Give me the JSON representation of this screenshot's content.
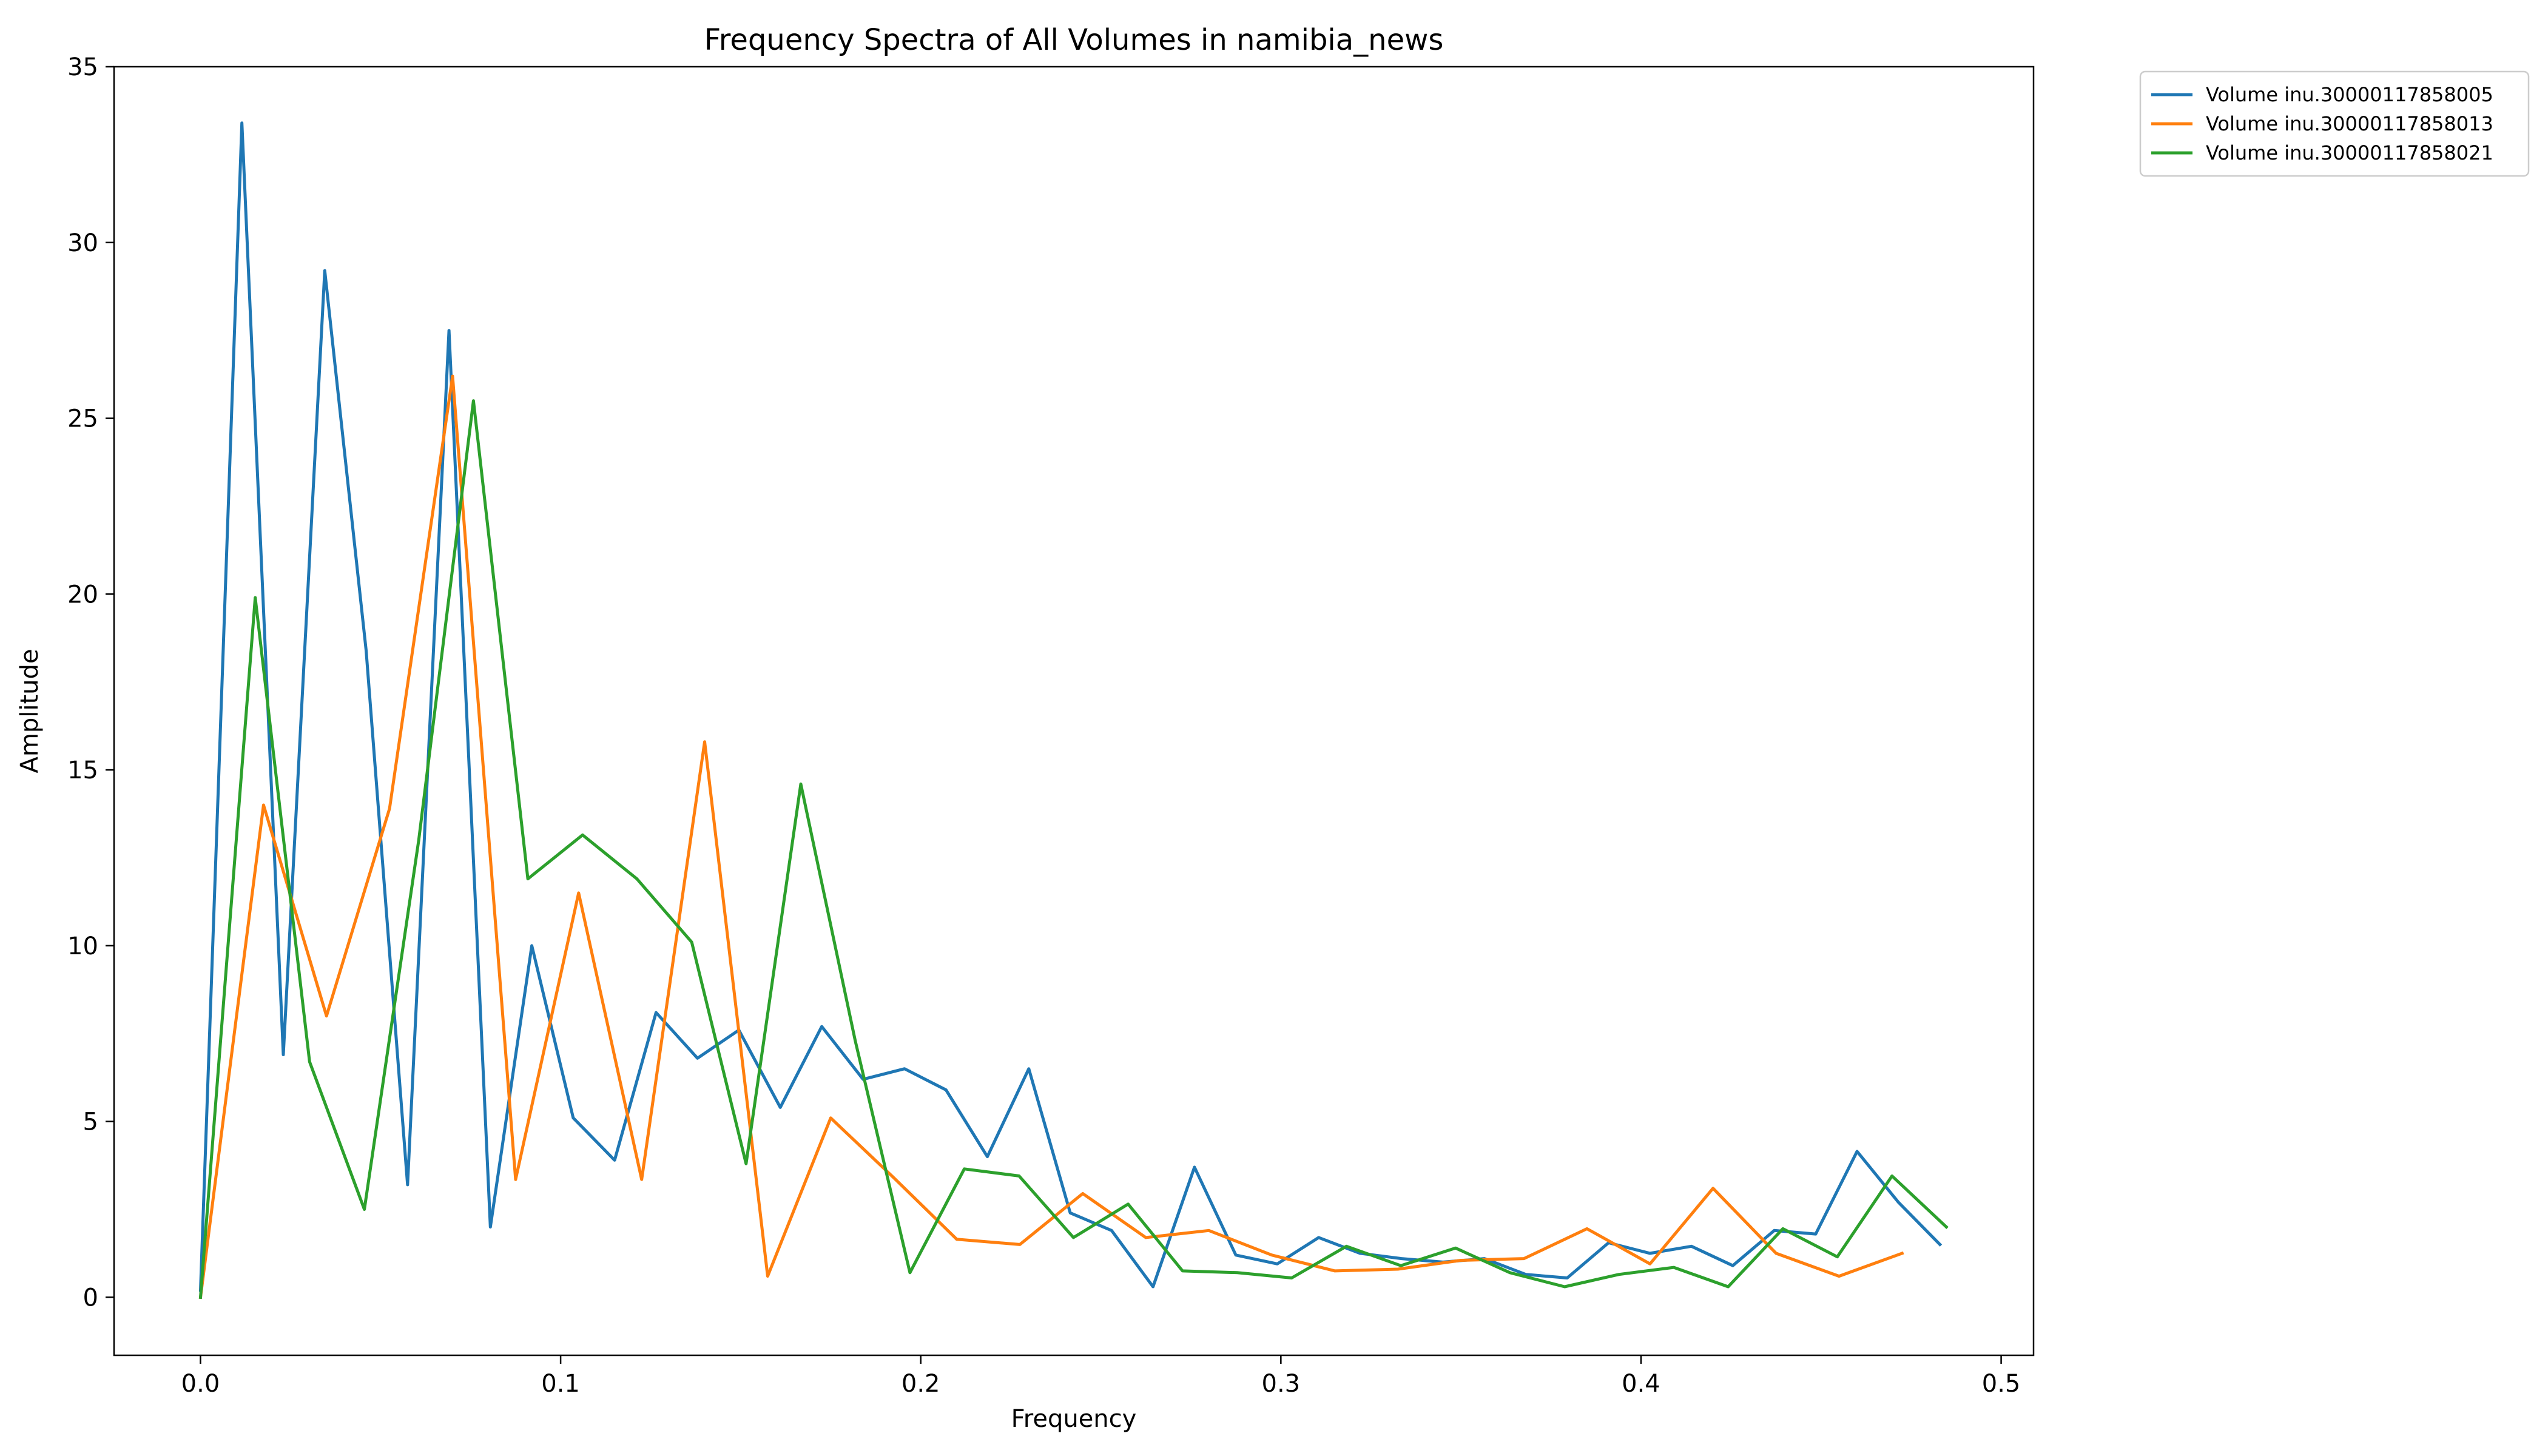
{
  "chart_data": {
    "type": "line",
    "title": "Frequency Spectra of All Volumes in namibia_news",
    "xlabel": "Frequency",
    "ylabel": "Amplitude",
    "xlim": [
      -0.024,
      0.509
    ],
    "ylim": [
      -1.65,
      35.0
    ],
    "xticks": [
      0.0,
      0.1,
      0.2,
      0.3,
      0.4,
      0.5
    ],
    "xtick_labels": [
      "0.0",
      "0.1",
      "0.2",
      "0.3",
      "0.4",
      "0.5"
    ],
    "yticks": [
      0,
      5,
      10,
      15,
      20,
      25,
      30,
      35
    ],
    "ytick_labels": [
      "0",
      "5",
      "10",
      "15",
      "20",
      "25",
      "30",
      "35"
    ],
    "grid": false,
    "legend_position": "outside-top-right",
    "series": [
      {
        "name": "Volume inu.30000117858005",
        "color": "#1f77b4",
        "x": [
          0.0,
          0.0115,
          0.023,
          0.0345,
          0.046,
          0.0575,
          0.069,
          0.0805,
          0.092,
          0.1035,
          0.115,
          0.1265,
          0.138,
          0.1495,
          0.161,
          0.1725,
          0.184,
          0.1955,
          0.207,
          0.2185,
          0.23,
          0.2415,
          0.253,
          0.2645,
          0.276,
          0.2875,
          0.299,
          0.3105,
          0.322,
          0.3335,
          0.345,
          0.3565,
          0.368,
          0.3795,
          0.391,
          0.4025,
          0.414,
          0.4255,
          0.437,
          0.4485,
          0.46,
          0.4715,
          0.483
        ],
        "y": [
          0.2,
          33.4,
          6.9,
          29.2,
          18.4,
          3.2,
          27.5,
          2.0,
          10.0,
          5.1,
          3.9,
          8.1,
          6.8,
          7.6,
          5.4,
          7.7,
          6.2,
          6.5,
          5.9,
          4.0,
          6.5,
          2.4,
          1.9,
          0.3,
          3.7,
          1.2,
          0.95,
          1.7,
          1.25,
          1.1,
          1.0,
          1.1,
          0.65,
          0.55,
          1.55,
          1.25,
          1.45,
          0.9,
          1.9,
          1.8,
          4.15,
          2.7,
          1.5
        ]
      },
      {
        "name": "Volume inu.30000117858013",
        "color": "#ff7f0e",
        "x": [
          0.0,
          0.0175,
          0.035,
          0.0525,
          0.07,
          0.0875,
          0.105,
          0.1225,
          0.14,
          0.1575,
          0.175,
          0.1925,
          0.21,
          0.2275,
          0.245,
          0.2625,
          0.28,
          0.2975,
          0.315,
          0.3325,
          0.35,
          0.3675,
          0.385,
          0.4025,
          0.42,
          0.4375,
          0.455,
          0.4725
        ],
        "y": [
          0.0,
          14.0,
          8.0,
          13.9,
          26.2,
          3.35,
          11.5,
          3.35,
          15.8,
          0.6,
          5.1,
          3.4,
          1.65,
          1.5,
          2.95,
          1.7,
          1.9,
          1.2,
          0.75,
          0.8,
          1.05,
          1.1,
          1.95,
          0.95,
          3.1,
          1.25,
          0.6,
          1.25
        ]
      },
      {
        "name": "Volume inu.30000117858021",
        "color": "#2ca02c",
        "x": [
          0.0,
          0.0152,
          0.0303,
          0.0455,
          0.0606,
          0.0758,
          0.0909,
          0.1061,
          0.1212,
          0.1364,
          0.1515,
          0.1667,
          0.1818,
          0.197,
          0.2121,
          0.2273,
          0.2424,
          0.2576,
          0.2727,
          0.2879,
          0.303,
          0.3182,
          0.3333,
          0.3485,
          0.3636,
          0.3788,
          0.3939,
          0.4091,
          0.4242,
          0.4394,
          0.4545,
          0.4697,
          0.4848
        ],
        "y": [
          0.0,
          19.9,
          6.7,
          2.5,
          13.0,
          25.5,
          11.9,
          13.15,
          11.9,
          10.1,
          3.8,
          14.6,
          7.3,
          0.7,
          3.65,
          3.45,
          1.7,
          2.65,
          0.75,
          0.7,
          0.55,
          1.45,
          0.9,
          1.4,
          0.7,
          0.3,
          0.65,
          0.85,
          0.3,
          1.95,
          1.15,
          3.45,
          2.0
        ]
      }
    ]
  }
}
